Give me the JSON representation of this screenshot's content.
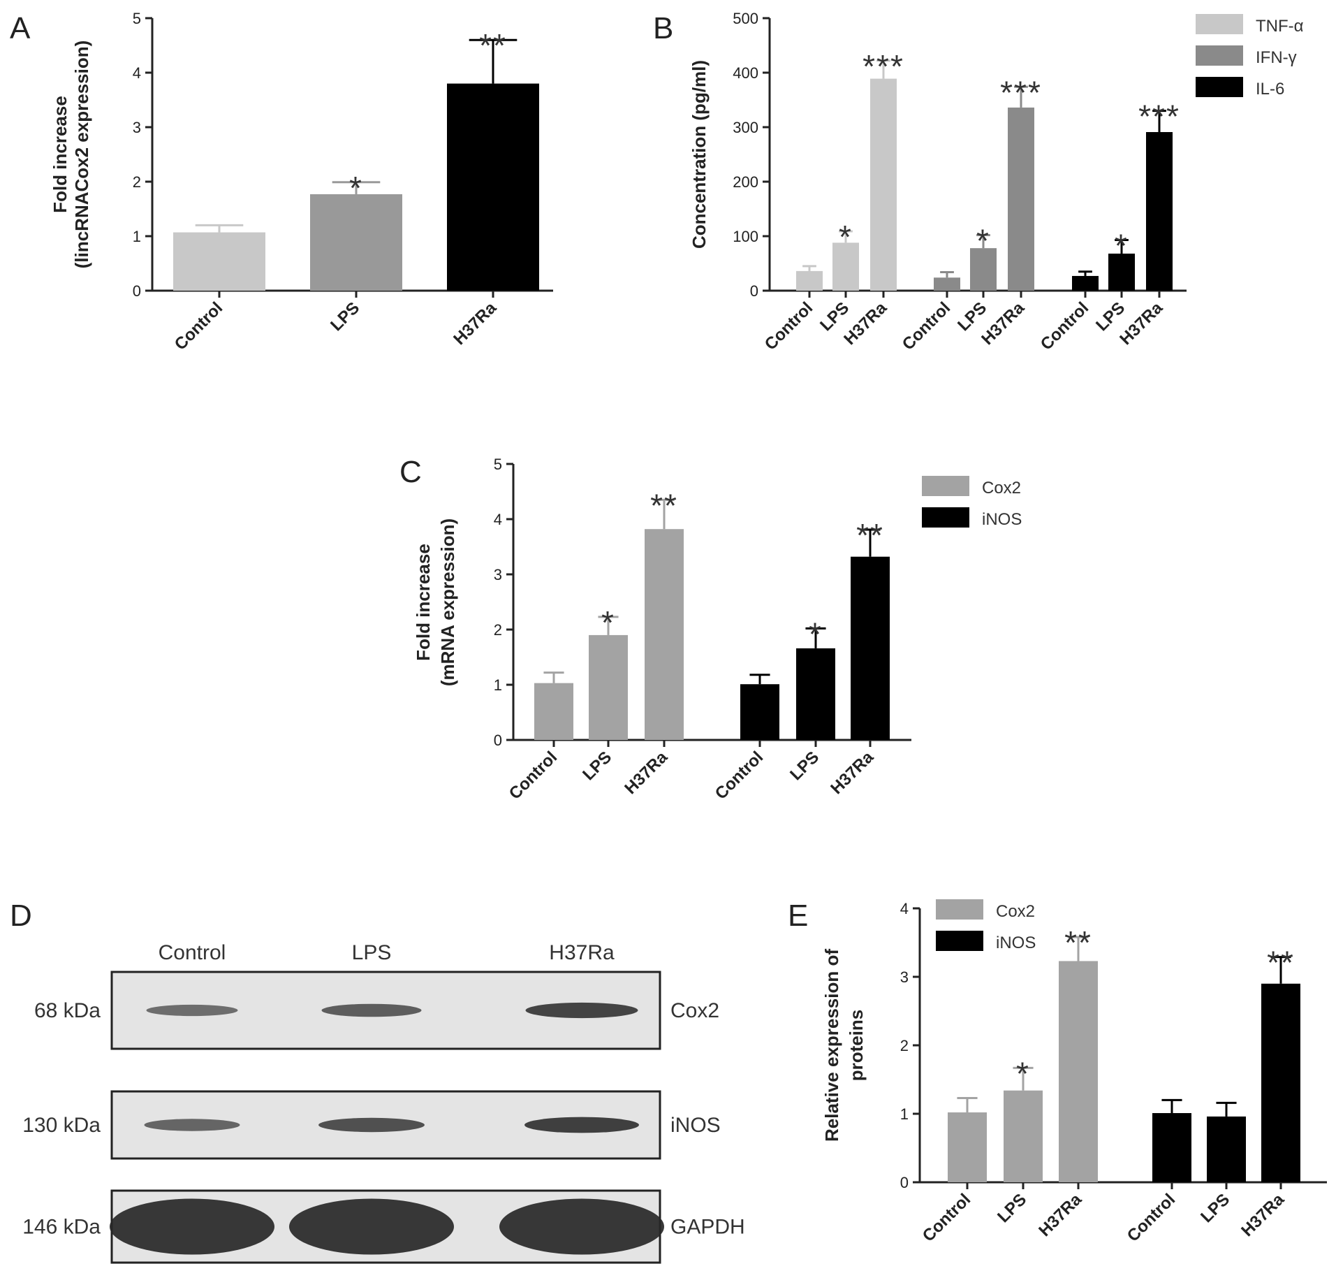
{
  "colors": {
    "light_gray": "#c8c8c8",
    "mid_gray": "#9a9a9a",
    "dark_gray": "#8a8a8a",
    "black": "#000000",
    "blot_background": "#e6e6e6",
    "band": "#303030"
  },
  "charts": [
    {
      "id": "A",
      "panel_label": "A",
      "type": "bar",
      "ylabel_lines": [
        "Fold increase",
        "(lincRNACox2 expression)"
      ],
      "ylim": [
        0,
        5
      ],
      "yticks": [
        0,
        1,
        2,
        3,
        4,
        5
      ],
      "categories": [
        "Control",
        "LPS",
        "H37Ra"
      ],
      "values": [
        1.07,
        1.77,
        3.8
      ],
      "errors": [
        0.13,
        0.22,
        0.8
      ],
      "colors": [
        "#c8c8c8",
        "#999999",
        "#000000"
      ],
      "significance": [
        "",
        "*",
        "**"
      ]
    },
    {
      "id": "B",
      "panel_label": "B",
      "type": "bar",
      "ylabel_lines": [
        "Concentration (pg/ml)"
      ],
      "ylim": [
        0,
        500
      ],
      "yticks": [
        0,
        100,
        200,
        300,
        400,
        500
      ],
      "groups": [
        {
          "series": "TNF-α",
          "color": "#c8c8c8",
          "categories": [
            "Control",
            "LPS",
            "H37Ra"
          ],
          "values": [
            36,
            88,
            389
          ],
          "errors": [
            9,
            21,
            33
          ],
          "significance": [
            "",
            "*",
            "***"
          ]
        },
        {
          "series": "IFN-γ",
          "color": "#8a8a8a",
          "categories": [
            "Control",
            "LPS",
            "H37Ra"
          ],
          "values": [
            24,
            78,
            336
          ],
          "errors": [
            10,
            24,
            38
          ],
          "significance": [
            "",
            "*",
            "***"
          ]
        },
        {
          "series": "IL-6",
          "color": "#000000",
          "categories": [
            "Control",
            "LPS",
            "H37Ra"
          ],
          "values": [
            27,
            68,
            291
          ],
          "errors": [
            8,
            25,
            39
          ],
          "significance": [
            "",
            "*",
            "***"
          ]
        }
      ],
      "legend": [
        {
          "name": "TNF-α",
          "color": "#c8c8c8"
        },
        {
          "name": "IFN-γ",
          "color": "#8a8a8a"
        },
        {
          "name": "IL-6",
          "color": "#000000"
        }
      ],
      "legend_position": "top-right"
    },
    {
      "id": "C",
      "panel_label": "C",
      "type": "bar",
      "ylabel_lines": [
        "Fold increase",
        "(mRNA expression)"
      ],
      "ylim": [
        0,
        5
      ],
      "yticks": [
        0,
        1,
        2,
        3,
        4,
        5
      ],
      "groups": [
        {
          "series": "Cox2",
          "color": "#a3a3a3",
          "categories": [
            "Control",
            "LPS",
            "H37Ra"
          ],
          "values": [
            1.03,
            1.9,
            3.82
          ],
          "errors": [
            0.19,
            0.33,
            0.53
          ],
          "significance": [
            "",
            "*",
            "**"
          ]
        },
        {
          "series": "iNOS",
          "color": "#000000",
          "categories": [
            "Control",
            "LPS",
            "H37Ra"
          ],
          "values": [
            1.01,
            1.66,
            3.32
          ],
          "errors": [
            0.17,
            0.36,
            0.49
          ],
          "significance": [
            "",
            "*",
            "**"
          ]
        }
      ],
      "legend": [
        {
          "name": "Cox2",
          "color": "#a3a3a3"
        },
        {
          "name": "iNOS",
          "color": "#000000"
        }
      ],
      "legend_position": "top-right"
    },
    {
      "id": "E",
      "panel_label": "E",
      "type": "bar",
      "ylabel_lines": [
        "Relative expression of",
        "proteins"
      ],
      "ylim": [
        0,
        4
      ],
      "yticks": [
        0,
        1,
        2,
        3,
        4
      ],
      "groups": [
        {
          "series": "Cox2",
          "color": "#a3a3a3",
          "categories": [
            "Control",
            "LPS",
            "H37Ra"
          ],
          "values": [
            1.02,
            1.34,
            3.23
          ],
          "errors": [
            0.21,
            0.33,
            0.35
          ],
          "significance": [
            "",
            "*",
            "**"
          ]
        },
        {
          "series": "iNOS",
          "color": "#000000",
          "categories": [
            "Control",
            "LPS",
            "H37Ra"
          ],
          "values": [
            1.01,
            0.96,
            2.9
          ],
          "errors": [
            0.19,
            0.2,
            0.39
          ],
          "significance": [
            "",
            "",
            "**"
          ]
        }
      ],
      "legend": [
        {
          "name": "Cox2",
          "color": "#a3a3a3"
        },
        {
          "name": "iNOS",
          "color": "#000000"
        }
      ],
      "legend_position": "top-left"
    }
  ],
  "blot": {
    "panel_label": "D",
    "lanes": [
      "Control",
      "LPS",
      "H37Ra"
    ],
    "rows": [
      {
        "weight": "68 kDa",
        "protein": "Cox2",
        "band_intensity": [
          0.35,
          0.55,
          0.85
        ]
      },
      {
        "weight": "130 kDa",
        "protein": "iNOS",
        "band_intensity": [
          0.45,
          0.7,
          0.9
        ]
      },
      {
        "weight": "146 kDa",
        "protein": "GAPDH",
        "band_intensity": [
          1.0,
          1.0,
          1.0
        ]
      }
    ]
  }
}
